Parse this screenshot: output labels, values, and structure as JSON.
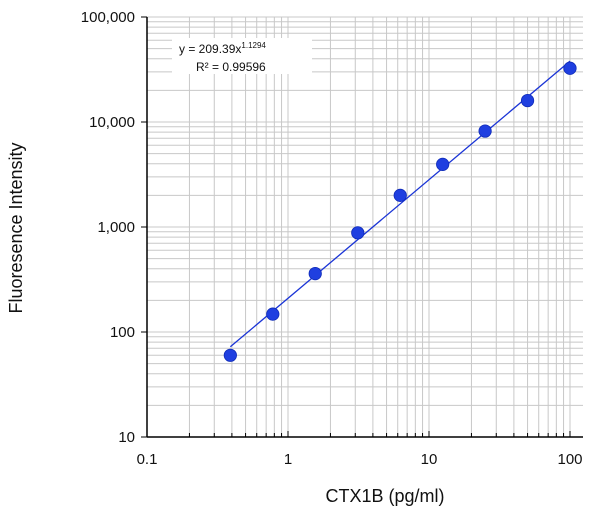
{
  "chart_data": {
    "type": "scatter",
    "xscale": "log",
    "yscale": "log",
    "xlim": [
      0.1,
      100
    ],
    "ylim": [
      10,
      100000
    ],
    "grid": true,
    "xlabel": "CTX1B (pg/ml)",
    "ylabel": "Fluoresence  Intensity",
    "x_ticks": [
      0.1,
      1,
      10,
      100
    ],
    "x_tick_labels": [
      "0.1",
      "1",
      "10",
      "100"
    ],
    "y_ticks": [
      10,
      100,
      1000,
      10000,
      100000
    ],
    "y_tick_labels": [
      "10",
      "100",
      "1,000",
      "10,000",
      "100,000"
    ],
    "points": {
      "x": [
        0.39,
        0.78,
        1.56,
        3.125,
        6.25,
        12.5,
        25,
        50,
        100
      ],
      "y": [
        60,
        148,
        360,
        880,
        2000,
        3950,
        8200,
        16000,
        32500
      ]
    },
    "trendline": {
      "type": "power",
      "coefficient": 209.39,
      "exponent": 1.1294,
      "x_range": [
        0.39,
        100
      ],
      "equation_prefix": "y = 209.39x",
      "equation_exponent": "1.1294",
      "r2_label": "R² = 0.99596"
    },
    "colors": {
      "points": "#1f3fe0",
      "trendline": "#1a34d6",
      "grid": "#c8c8c8",
      "axis": "#000000"
    }
  }
}
